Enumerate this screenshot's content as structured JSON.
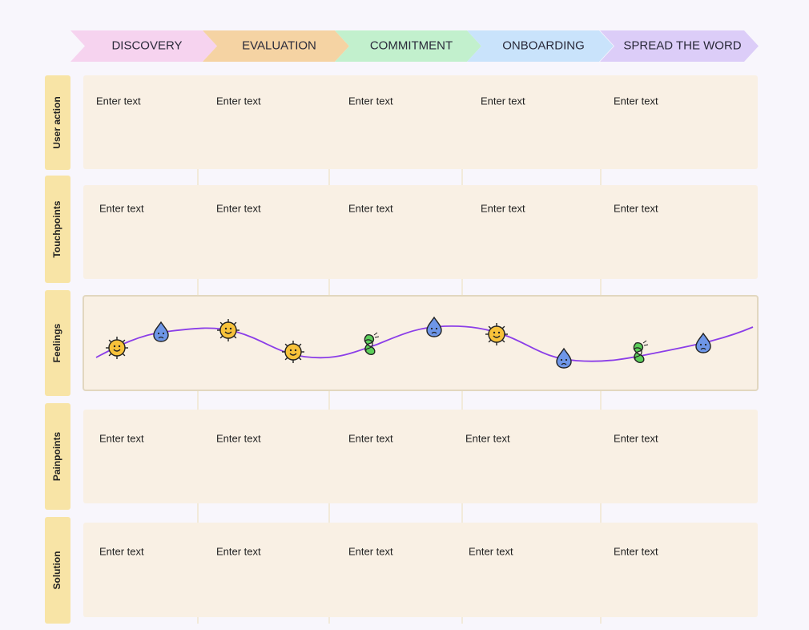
{
  "stages": [
    "DISCOVERY",
    "EVALUATION",
    "COMMITMENT",
    "ONBOARDING",
    "SPREAD THE WORD"
  ],
  "rows": [
    {
      "label": "User action",
      "cells": [
        "Enter text",
        "Enter text",
        "Enter text",
        "Enter text",
        "Enter text"
      ]
    },
    {
      "label": "Touchpoints",
      "cells": [
        "Enter text",
        "Enter text",
        "Enter text",
        "Enter text",
        "Enter text"
      ]
    },
    {
      "label": "Feelings"
    },
    {
      "label": "Painpoints",
      "cells": [
        "Enter text",
        "Enter text",
        "Enter text",
        "Enter text",
        "Enter text"
      ]
    },
    {
      "label": "Solution",
      "cells": [
        "Enter text",
        "Enter text",
        "Enter text",
        "Enter text",
        "Enter text"
      ]
    }
  ]
}
